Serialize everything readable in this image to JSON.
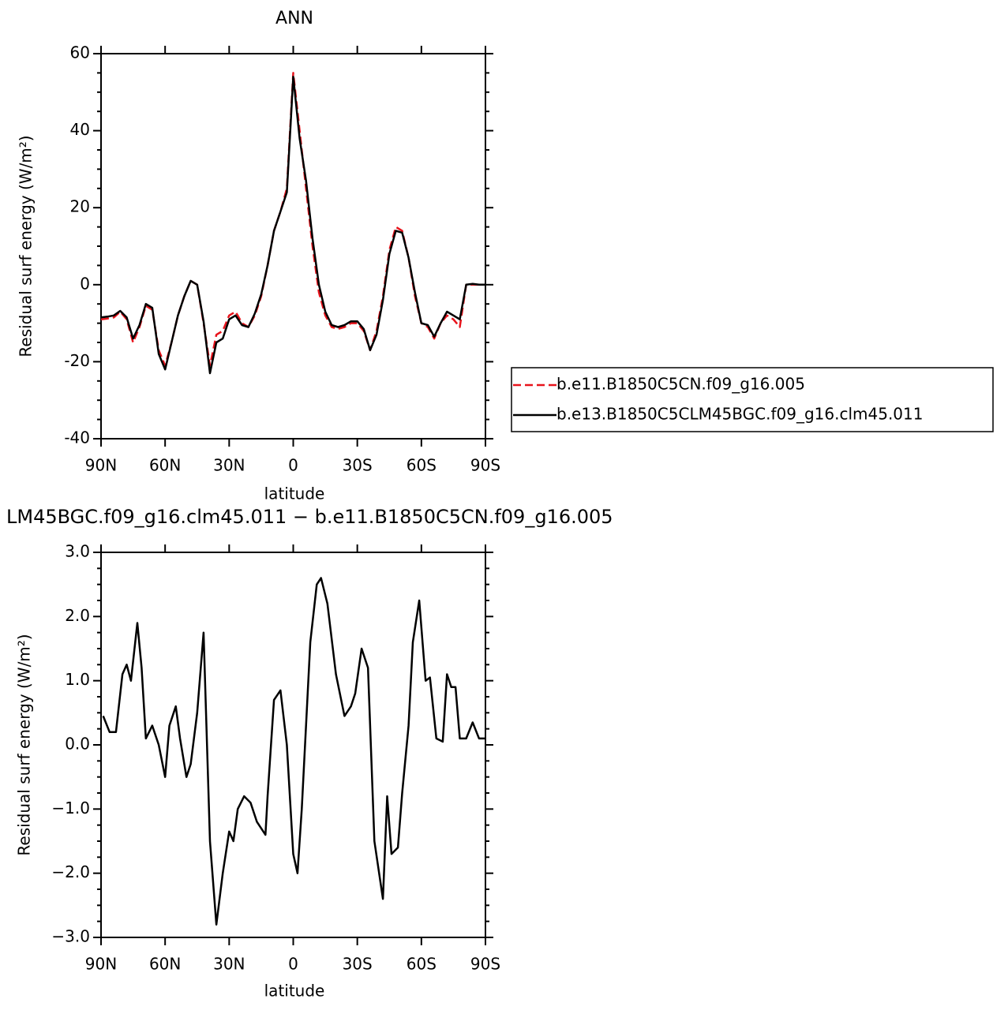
{
  "chart_data": [
    {
      "type": "line",
      "title": "ANN",
      "xlabel": "latitude",
      "ylabel": "Residual surf energy (W/m²)",
      "x": [
        90,
        87,
        84,
        81,
        78,
        75,
        72,
        69,
        66,
        63,
        60,
        57,
        54,
        51,
        48,
        45,
        42,
        39,
        36,
        33,
        30,
        27,
        24,
        21,
        18,
        15,
        12,
        9,
        6,
        3,
        0,
        -3,
        -6,
        -9,
        -12,
        -15,
        -18,
        -21,
        -24,
        -27,
        -30,
        -33,
        -36,
        -39,
        -42,
        -45,
        -48,
        -51,
        -54,
        -57,
        -60,
        -63,
        -66,
        -69,
        -72,
        -75,
        -78,
        -81,
        -84,
        -87,
        -90
      ],
      "series": [
        {
          "name": "b.e11.B1850C5CN.f09_g16.005",
          "color": "#e8141c",
          "linestyle": "dashed",
          "values": [
            -9,
            -8.8,
            -8.5,
            -7,
            -9,
            -15,
            -11,
            -5.5,
            -6.5,
            -17,
            -21,
            -15,
            -8,
            -3,
            1,
            0,
            -10,
            -21,
            -13,
            -12,
            -8,
            -7,
            -10,
            -11,
            -8,
            -3,
            5,
            14,
            19,
            25,
            55,
            40,
            25,
            10,
            -2,
            -8,
            -11,
            -11.5,
            -11,
            -10,
            -10,
            -12,
            -17,
            -12,
            -3,
            9,
            15,
            14,
            7,
            -3,
            -10,
            -11,
            -14,
            -10,
            -8,
            -9,
            -11,
            0,
            0,
            0,
            0
          ]
        },
        {
          "name": "b.e13.B1850C5CLM45BGC.f09_g16.clm45.011",
          "color": "#000000",
          "linestyle": "solid",
          "values": [
            -8.5,
            -8.3,
            -8,
            -6.8,
            -8.5,
            -14,
            -10.5,
            -5,
            -6,
            -18,
            -22,
            -15,
            -8,
            -3,
            1,
            0,
            -9.5,
            -23,
            -15,
            -14,
            -9,
            -8,
            -10.5,
            -11,
            -7.5,
            -2.5,
            5,
            14,
            19,
            24,
            54,
            38,
            27,
            12,
            0,
            -7,
            -10.5,
            -11,
            -10.5,
            -9.5,
            -9.5,
            -11.5,
            -17,
            -13,
            -4,
            8,
            14,
            13.5,
            7,
            -2,
            -10,
            -10.5,
            -13.5,
            -10,
            -7,
            -8,
            -9,
            0,
            0.2,
            0,
            0
          ]
        }
      ],
      "xlim": [
        90,
        -90
      ],
      "xticks": [
        {
          "value": 90,
          "label": "90N"
        },
        {
          "value": 60,
          "label": "60N"
        },
        {
          "value": 30,
          "label": "30N"
        },
        0,
        {
          "value": -30,
          "label": "30S"
        },
        {
          "value": -60,
          "label": "60S"
        },
        {
          "value": -90,
          "label": "90S"
        }
      ],
      "ylim": [
        -40,
        60
      ],
      "yticks": [
        -40,
        -20,
        0,
        20,
        40,
        60
      ],
      "legend": "right"
    },
    {
      "type": "line",
      "title": "LM45BGC.f09_g16.clm45.011 − b.e11.B1850C5CN.f09_g16.005",
      "xlabel": "latitude",
      "ylabel": "Residual surf energy (W/m²)",
      "x": [
        89,
        86,
        83,
        80,
        78,
        76,
        73,
        71,
        69,
        66,
        63,
        60,
        58,
        55,
        53,
        50,
        48,
        45,
        42,
        39,
        36,
        33,
        30,
        28,
        26,
        23,
        20,
        17,
        13,
        12,
        9,
        6,
        3,
        0,
        -2,
        -4,
        -8,
        -11,
        -13,
        -16,
        -20,
        -24,
        -27,
        -29,
        -32,
        -35,
        -38,
        -42,
        -44,
        -46,
        -49,
        -51,
        -54,
        -56,
        -59,
        -62,
        -64,
        -67,
        -70,
        -72,
        -74,
        -76,
        -78,
        -81,
        -84,
        -87,
        -90
      ],
      "series": [
        {
          "color": "#000000",
          "values": [
            0.45,
            0.2,
            0.2,
            1.1,
            1.25,
            1.0,
            1.9,
            1.2,
            0.1,
            0.3,
            0.0,
            -0.5,
            0.3,
            0.6,
            0.1,
            -0.5,
            -0.3,
            0.5,
            1.75,
            -1.5,
            -2.8,
            -2.0,
            -1.35,
            -1.5,
            -1.0,
            -0.8,
            -0.9,
            -1.2,
            -1.4,
            -0.8,
            0.7,
            0.85,
            0.0,
            -1.7,
            -2.0,
            -1.0,
            1.6,
            2.5,
            2.6,
            2.2,
            1.1,
            0.45,
            0.6,
            0.8,
            1.5,
            1.2,
            -1.5,
            -2.4,
            -0.8,
            -1.7,
            -1.6,
            -0.75,
            0.3,
            1.6,
            2.25,
            1.0,
            1.05,
            0.1,
            0.05,
            1.1,
            0.9,
            0.9,
            0.1,
            0.1,
            0.35,
            0.1,
            0.1
          ]
        }
      ],
      "xlim": [
        90,
        -90
      ],
      "xticks": [
        {
          "value": 90,
          "label": "90N"
        },
        {
          "value": 60,
          "label": "60N"
        },
        {
          "value": 30,
          "label": "30N"
        },
        0,
        {
          "value": -30,
          "label": "30S"
        },
        {
          "value": -60,
          "label": "60S"
        },
        {
          "value": -90,
          "label": "90S"
        }
      ],
      "ylim": [
        -3,
        3
      ],
      "yticks": [
        {
          "value": -3,
          "label": "−3.0"
        },
        {
          "value": -2,
          "label": "−2.0"
        },
        {
          "value": -1,
          "label": "−1.0"
        },
        {
          "value": 0,
          "label": "0.0"
        },
        {
          "value": 1,
          "label": "1.0"
        },
        {
          "value": 2,
          "label": "2.0"
        },
        {
          "value": 3,
          "label": "3.0"
        }
      ]
    }
  ]
}
